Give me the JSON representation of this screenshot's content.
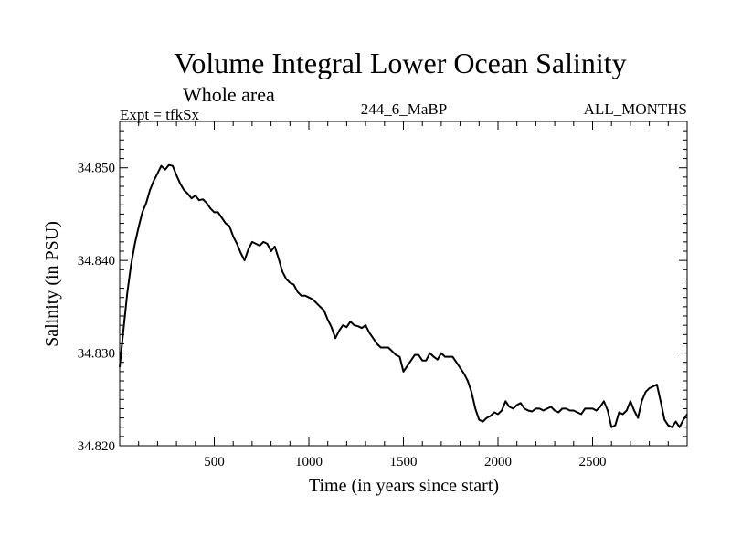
{
  "chart_data": {
    "type": "line",
    "title": "Volume Integral Lower Ocean Salinity",
    "subtitle": "Whole area",
    "left_label": "Expt = tfkSx",
    "center_label": "244_6_MaBP",
    "right_label": "ALL_MONTHS",
    "xlabel": "Time (in years since start)",
    "ylabel": "Salinity (in PSU)",
    "xlim": [
      0,
      3000
    ],
    "ylim": [
      34.82,
      34.855
    ],
    "x_ticks": [
      500,
      1000,
      1500,
      2000,
      2500
    ],
    "x_tick_labels": [
      "500",
      "1000",
      "1500",
      "2000",
      "2500"
    ],
    "y_ticks": [
      34.82,
      34.83,
      34.84,
      34.85
    ],
    "y_tick_labels": [
      "34.820",
      "34.830",
      "34.840",
      "34.850"
    ],
    "line_color": "#000000",
    "series": [
      {
        "name": "salinity",
        "x": [
          0,
          20,
          40,
          60,
          80,
          100,
          120,
          140,
          160,
          180,
          200,
          220,
          240,
          260,
          280,
          300,
          320,
          340,
          360,
          380,
          400,
          420,
          440,
          460,
          480,
          500,
          520,
          540,
          560,
          580,
          600,
          620,
          640,
          660,
          680,
          700,
          720,
          740,
          760,
          780,
          800,
          820,
          840,
          860,
          880,
          900,
          920,
          940,
          960,
          980,
          1000,
          1020,
          1040,
          1060,
          1080,
          1100,
          1120,
          1140,
          1160,
          1180,
          1200,
          1220,
          1240,
          1260,
          1280,
          1300,
          1320,
          1340,
          1360,
          1380,
          1400,
          1420,
          1440,
          1460,
          1480,
          1500,
          1520,
          1540,
          1560,
          1580,
          1600,
          1620,
          1640,
          1660,
          1680,
          1700,
          1720,
          1740,
          1760,
          1780,
          1800,
          1820,
          1840,
          1860,
          1880,
          1900,
          1920,
          1940,
          1960,
          1980,
          2000,
          2020,
          2040,
          2060,
          2080,
          2100,
          2120,
          2140,
          2160,
          2180,
          2200,
          2220,
          2240,
          2260,
          2280,
          2300,
          2320,
          2340,
          2360,
          2380,
          2400,
          2420,
          2440,
          2460,
          2480,
          2500,
          2520,
          2540,
          2560,
          2580,
          2600,
          2620,
          2640,
          2660,
          2680,
          2700,
          2720,
          2740,
          2760,
          2780,
          2800,
          2820,
          2840,
          2860,
          2880,
          2900,
          2920,
          2940,
          2960,
          2980,
          3000
        ],
        "y": [
          34.8285,
          34.8325,
          34.8365,
          34.8395,
          34.8418,
          34.8436,
          34.8452,
          34.8462,
          34.8476,
          34.8486,
          34.8494,
          34.8502,
          34.8498,
          34.8503,
          34.8502,
          34.8492,
          34.8483,
          34.8476,
          34.8472,
          34.8467,
          34.847,
          34.8465,
          34.8466,
          34.8462,
          34.8456,
          34.8452,
          34.8452,
          34.8446,
          34.844,
          34.8437,
          34.8426,
          34.8418,
          34.8408,
          34.84,
          34.8412,
          34.842,
          34.8418,
          34.8416,
          34.842,
          34.8418,
          34.841,
          34.8415,
          34.8402,
          34.8388,
          34.838,
          34.8376,
          34.8374,
          34.8366,
          34.8362,
          34.8362,
          34.836,
          34.8358,
          34.8354,
          34.835,
          34.8346,
          34.8336,
          34.8328,
          34.8316,
          34.8324,
          34.833,
          34.8328,
          34.8334,
          34.833,
          34.8329,
          34.8327,
          34.833,
          34.8322,
          34.8316,
          34.831,
          34.8306,
          34.8306,
          34.8306,
          34.8302,
          34.8298,
          34.8296,
          34.828,
          34.8286,
          34.8292,
          34.8298,
          34.8298,
          34.8292,
          34.8292,
          34.83,
          34.8296,
          34.8293,
          34.83,
          34.8296,
          34.8296,
          34.8296,
          34.829,
          34.8284,
          34.8278,
          34.827,
          34.8258,
          34.824,
          34.8228,
          34.8226,
          34.823,
          34.8232,
          34.8236,
          34.8234,
          34.8238,
          34.8248,
          34.8242,
          34.824,
          34.8244,
          34.8246,
          34.824,
          34.8238,
          34.8237,
          34.824,
          34.824,
          34.8238,
          34.824,
          34.8242,
          34.8238,
          34.8236,
          34.824,
          34.824,
          34.8238,
          34.8238,
          34.8236,
          34.8234,
          34.824,
          34.824,
          34.824,
          34.8238,
          34.8242,
          34.8248,
          34.8238,
          34.822,
          34.8222,
          34.8236,
          34.8234,
          34.8238,
          34.8248,
          34.8238,
          34.823,
          34.8248,
          34.8258,
          34.8262,
          34.8264,
          34.8266,
          34.8248,
          34.8228,
          34.8222,
          34.822,
          34.8226,
          34.822,
          34.8228,
          34.8234
        ]
      }
    ]
  }
}
